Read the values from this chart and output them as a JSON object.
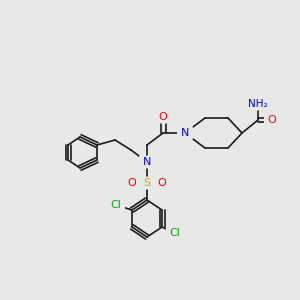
{
  "bg_color": "#e8e8e8",
  "figsize": [
    3.0,
    3.0
  ],
  "dpi": 100,
  "bond_color": "#1a1a1a",
  "bond_width": 1.2,
  "atom_colors": {
    "N": "#0000ff",
    "O": "#ff0000",
    "S": "#ccaa00",
    "Cl": "#00aa00",
    "H": "#808080",
    "C": "#1a1a1a"
  }
}
